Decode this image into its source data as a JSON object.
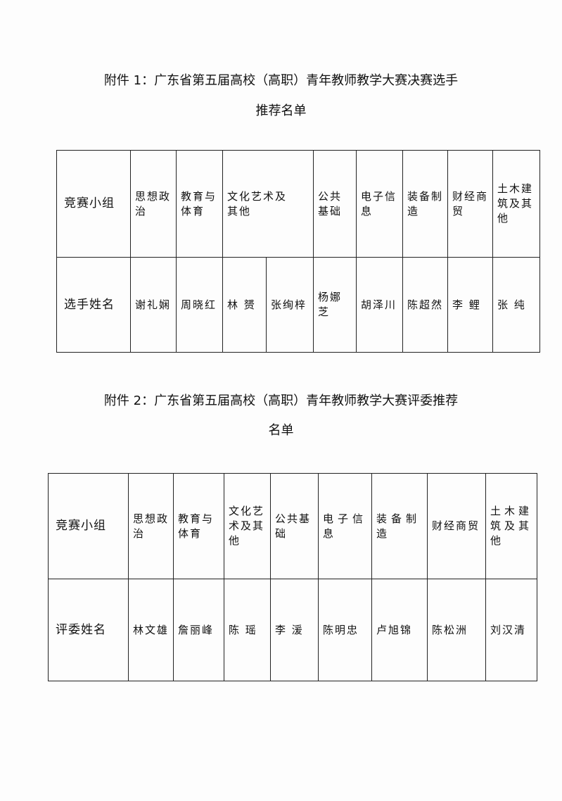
{
  "doc1": {
    "title_line1": "附件 1：广东省第五届高校（高职）青年教师教学大赛决赛选手",
    "title_line2": "推荐名单",
    "row1_label": "竞赛小组",
    "groups": [
      "思想政治",
      "教育与体育",
      "文化艺术及其他",
      "公共基础",
      "电子信息",
      "装备制造",
      "财经商贸",
      "土木建筑及其他"
    ],
    "row2_label": "选手姓名",
    "names": [
      "谢礼娴",
      "周晓红",
      "林 赟",
      "张绚梓",
      "杨娜芝",
      "胡泽川",
      "陈超然",
      "李 鲤",
      "张 纯"
    ]
  },
  "doc2": {
    "title_line1": "附件 2：广东省第五届高校（高职）青年教师教学大赛评委推荐",
    "title_line2": "名单",
    "row1_label": "竞赛小组",
    "groups": [
      "思想政治",
      "教育与体育",
      "文化艺术及其他",
      "公共基础",
      "电子信息",
      "装备制造",
      "财经商贸",
      "土木建筑及其他"
    ],
    "row2_label": "评委姓名",
    "names": [
      "林文雄",
      "詹丽峰",
      "陈 瑶",
      "李 湲",
      "陈明忠",
      "卢旭锦",
      "陈松洲",
      "刘汉清"
    ]
  }
}
